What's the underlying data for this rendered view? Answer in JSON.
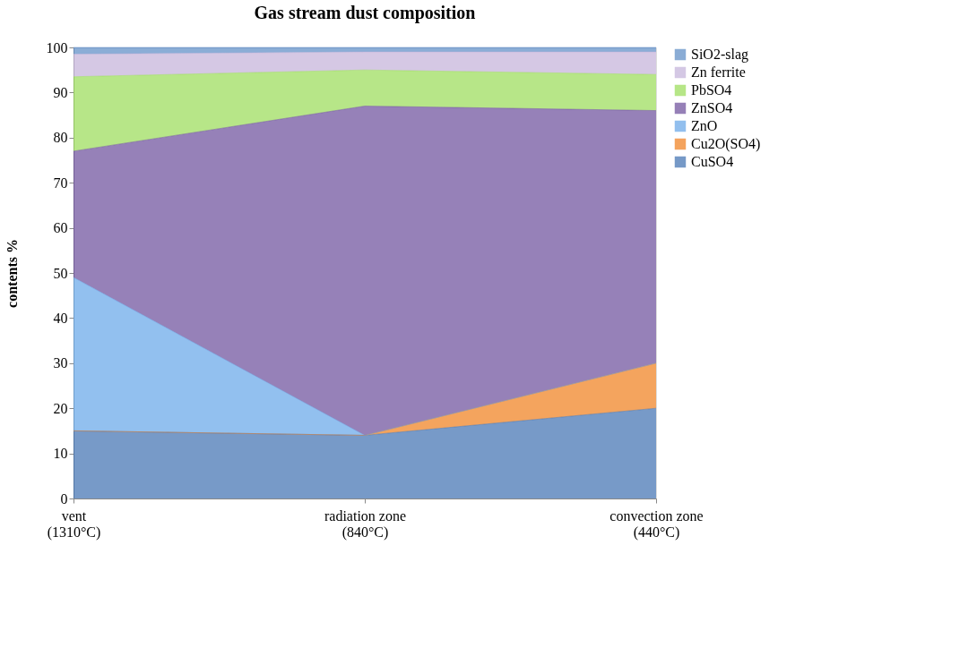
{
  "chart_data": {
    "type": "area",
    "title": "Gas stream dust composition",
    "ylabel": "contents %",
    "categories": [
      "vent\n(1310°C)",
      "radiation zone\n(840°C)",
      "convection zone\n(440°C)"
    ],
    "stacked": true,
    "ylim": [
      0,
      100
    ],
    "yticks": [
      0,
      10,
      20,
      30,
      40,
      50,
      60,
      70,
      80,
      90,
      100
    ],
    "grid": false,
    "legend": "right",
    "series": [
      {
        "name": "CuSO4",
        "color": "#3d6fb0",
        "values": [
          15,
          14,
          20
        ]
      },
      {
        "name": "Cu2O(SO4)",
        "color": "#f07d1a",
        "values": [
          0,
          0,
          10
        ]
      },
      {
        "name": "ZnO",
        "color": "#64a5e8",
        "values": [
          34,
          0,
          0
        ]
      },
      {
        "name": "ZnSO4",
        "color": "#6a4b9a",
        "values": [
          28,
          73,
          56
        ]
      },
      {
        "name": "PbSO4",
        "color": "#98dc55",
        "values": [
          16.5,
          8,
          8
        ]
      },
      {
        "name": "Zn ferrite",
        "color": "#c3b1d9",
        "values": [
          5,
          4,
          5
        ]
      },
      {
        "name": "SiO2-slag",
        "color": "#5a8ac4",
        "values": [
          1.5,
          1,
          1
        ]
      }
    ]
  }
}
